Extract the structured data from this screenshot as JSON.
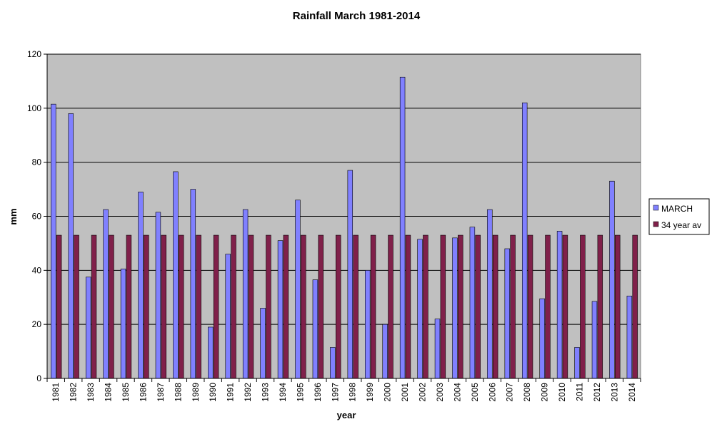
{
  "chart_data": {
    "type": "bar",
    "title": "Rainfall March 1981-2014",
    "xlabel": "year",
    "ylabel": "mm",
    "ylim": [
      0,
      120
    ],
    "yticks": [
      0,
      20,
      40,
      60,
      80,
      100,
      120
    ],
    "grid": true,
    "legend_position": "right",
    "categories": [
      "1981",
      "1982",
      "1983",
      "1984",
      "1985",
      "1986",
      "1987",
      "1988",
      "1989",
      "1990",
      "1991",
      "1992",
      "1993",
      "1994",
      "1995",
      "1996",
      "1997",
      "1998",
      "1999",
      "2000",
      "2001",
      "2002",
      "2003",
      "2004",
      "2005",
      "2006",
      "2007",
      "2008",
      "2009",
      "2010",
      "2011",
      "2012",
      "2013",
      "2014"
    ],
    "series": [
      {
        "name": "MARCH",
        "color": "#8080ff",
        "values": [
          101.5,
          98,
          37.5,
          62.5,
          40.5,
          69,
          61.5,
          76.5,
          70,
          19,
          46,
          62.5,
          26,
          51,
          66,
          36.5,
          11.5,
          77,
          40,
          20,
          111.5,
          51.5,
          22,
          52,
          56,
          62.5,
          48,
          102,
          29.5,
          54.5,
          11.5,
          28.5,
          73,
          30.5
        ]
      },
      {
        "name": "34 year av",
        "color": "#80204a",
        "values": [
          53,
          53,
          53,
          53,
          53,
          53,
          53,
          53,
          53,
          53,
          53,
          53,
          53,
          53,
          53,
          53,
          53,
          53,
          53,
          53,
          53,
          53,
          53,
          53,
          53,
          53,
          53,
          53,
          53,
          53,
          53,
          53,
          53,
          53
        ]
      }
    ],
    "plot_background": "#c0c0c0"
  }
}
